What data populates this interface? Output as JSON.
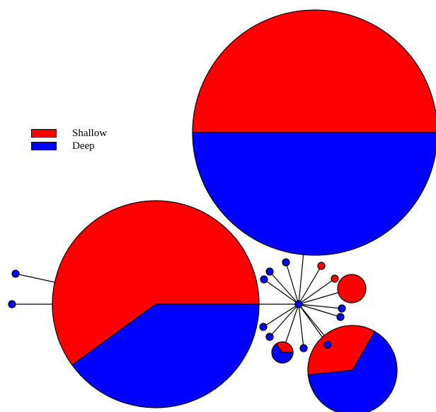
{
  "legend": {
    "items": [
      {
        "label": "Shallow",
        "color": "#ff0000"
      },
      {
        "label": "Deep",
        "color": "#0000ff"
      }
    ]
  },
  "colors": {
    "shallow": "#ff0000",
    "deep": "#0000ff",
    "edge": "#000000",
    "background": "#ffffff"
  },
  "network": {
    "nodes": [
      {
        "id": "hub",
        "shallow": 0,
        "deep": 1
      },
      {
        "id": "large-top",
        "shallow": 0.5,
        "deep": 0.5
      },
      {
        "id": "large-left",
        "shallow": 0.6,
        "deep": 0.4
      },
      {
        "id": "medium-bottom-right",
        "shallow": 0.35,
        "deep": 0.65
      },
      {
        "id": "small-red",
        "shallow": 1,
        "deep": 0
      },
      {
        "id": "small-mixed",
        "shallow": 0.35,
        "deep": 0.65
      },
      {
        "id": "tiny-red-1",
        "shallow": 1,
        "deep": 0
      },
      {
        "id": "tiny-red-2",
        "shallow": 1,
        "deep": 0
      },
      {
        "id": "tiny-blue-1",
        "shallow": 0,
        "deep": 1
      },
      {
        "id": "tiny-blue-2",
        "shallow": 0,
        "deep": 1
      },
      {
        "id": "tiny-blue-3",
        "shallow": 0,
        "deep": 1
      },
      {
        "id": "tiny-blue-4",
        "shallow": 0,
        "deep": 1
      },
      {
        "id": "tiny-blue-5",
        "shallow": 0,
        "deep": 1
      },
      {
        "id": "tiny-blue-6",
        "shallow": 0,
        "deep": 1
      },
      {
        "id": "tiny-blue-7",
        "shallow": 0,
        "deep": 1
      },
      {
        "id": "tiny-blue-8",
        "shallow": 0,
        "deep": 1
      },
      {
        "id": "tiny-blue-9",
        "shallow": 0,
        "deep": 1
      },
      {
        "id": "leaf-blue-1",
        "shallow": 0,
        "deep": 1
      },
      {
        "id": "leaf-blue-2",
        "shallow": 0,
        "deep": 1
      }
    ],
    "edges": [
      [
        "hub",
        "large-top"
      ],
      [
        "hub",
        "large-left"
      ],
      [
        "hub",
        "medium-bottom-right"
      ],
      [
        "hub",
        "small-red"
      ],
      [
        "hub",
        "small-mixed"
      ],
      [
        "hub",
        "tiny-red-1"
      ],
      [
        "hub",
        "tiny-red-2"
      ],
      [
        "hub",
        "tiny-blue-1"
      ],
      [
        "hub",
        "tiny-blue-2"
      ],
      [
        "hub",
        "tiny-blue-3"
      ],
      [
        "hub",
        "tiny-blue-4"
      ],
      [
        "hub",
        "tiny-blue-5"
      ],
      [
        "hub",
        "tiny-blue-6"
      ],
      [
        "hub",
        "tiny-blue-7"
      ],
      [
        "hub",
        "tiny-blue-8"
      ],
      [
        "hub",
        "tiny-blue-9"
      ],
      [
        "large-left",
        "leaf-blue-1"
      ],
      [
        "large-left",
        "leaf-blue-2"
      ]
    ]
  }
}
